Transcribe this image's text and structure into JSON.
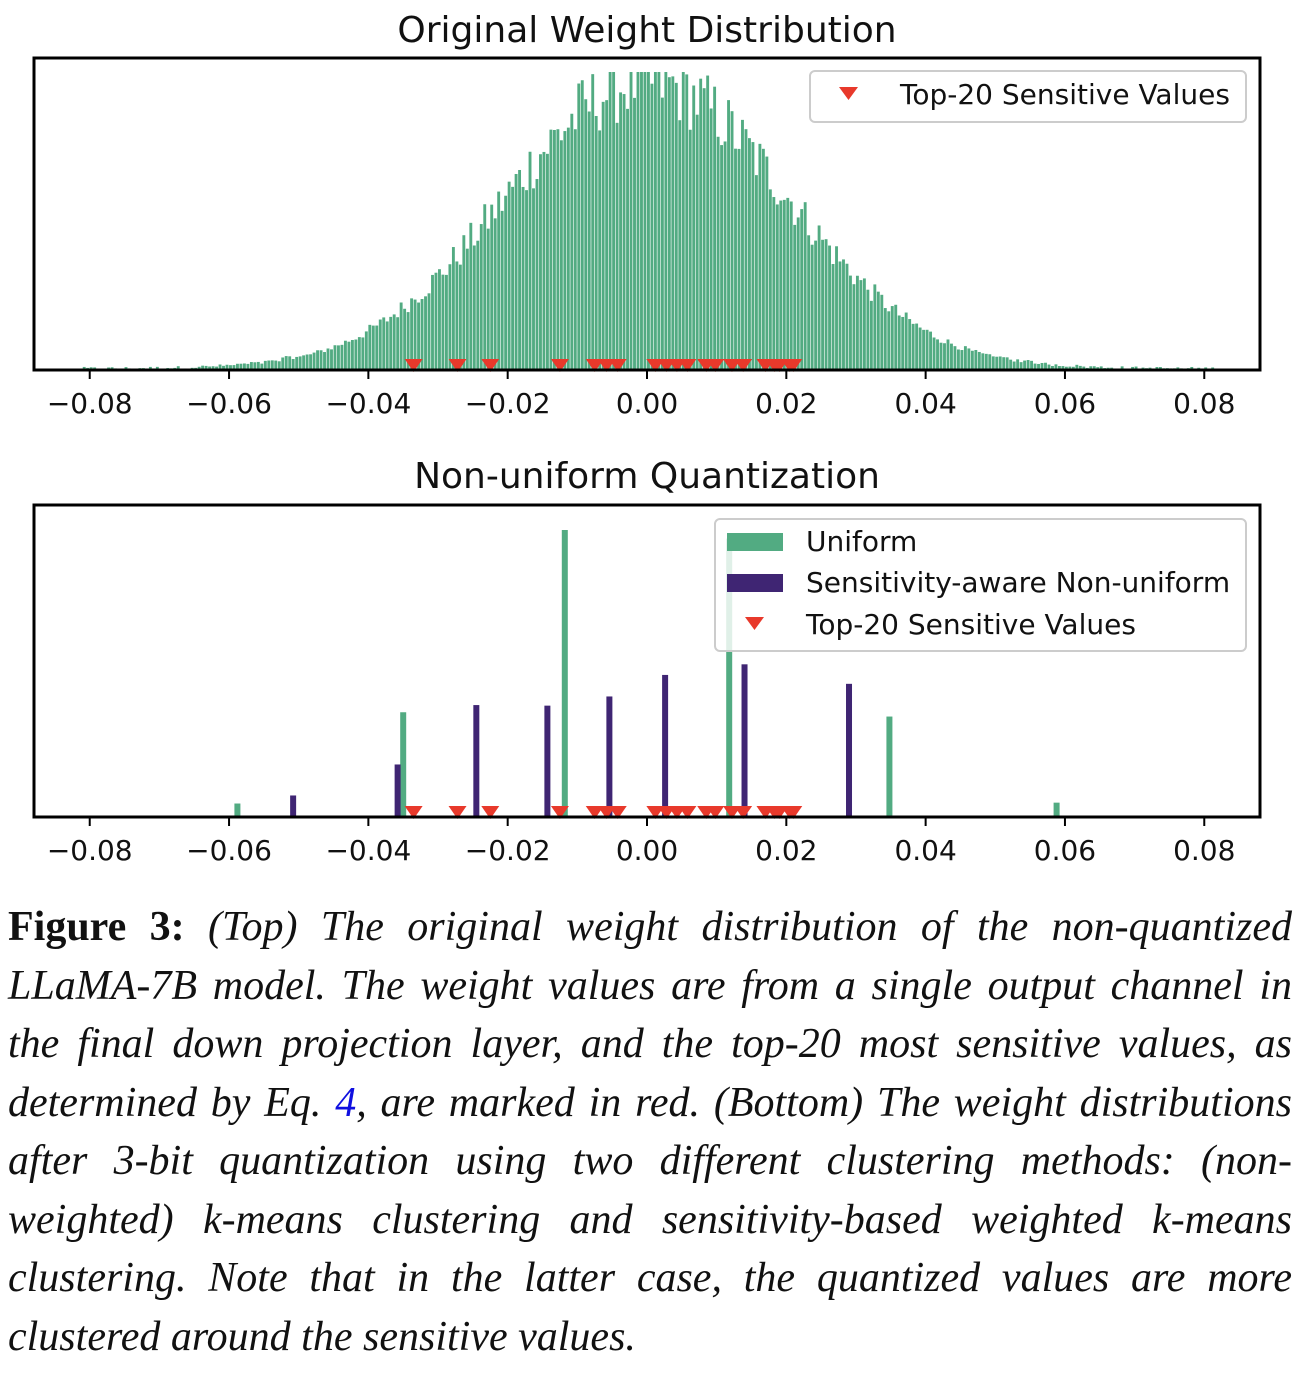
{
  "chart_data": [
    {
      "type": "bar",
      "title": "Original Weight Distribution",
      "xlabel": "",
      "ylabel": "",
      "xlim": [
        -0.088,
        0.088
      ],
      "xticks": [
        "−0.08",
        "−0.06",
        "−0.04",
        "−0.02",
        "0.00",
        "0.02",
        "0.04",
        "0.06",
        "0.08"
      ],
      "xtick_values": [
        -0.08,
        -0.06,
        -0.04,
        -0.02,
        0.0,
        0.02,
        0.04,
        0.06,
        0.08
      ],
      "legend": {
        "placement": "upper right",
        "entries": [
          "Top-20 Sensitive Values"
        ]
      },
      "series": [
        {
          "name": "histogram",
          "color": "#52ab82",
          "distribution": "approximately normal",
          "center": 0.0,
          "std": 0.02
        },
        {
          "name": "Top-20 Sensitive Values",
          "color": "#e8392b",
          "marker": "triangle-down",
          "x": [
            -0.0335,
            -0.0272,
            -0.0225,
            -0.0125,
            -0.0075,
            -0.0058,
            -0.0042,
            0.0012,
            0.0028,
            0.0043,
            0.0058,
            0.0085,
            0.0098,
            0.0122,
            0.0138,
            0.017,
            0.0183,
            0.019,
            0.0205,
            0.021
          ]
        }
      ]
    },
    {
      "type": "bar",
      "title": "Non-uniform Quantization",
      "xlabel": "",
      "ylabel": "",
      "xlim": [
        -0.088,
        0.088
      ],
      "xticks": [
        "−0.08",
        "−0.06",
        "−0.04",
        "−0.02",
        "0.00",
        "0.02",
        "0.04",
        "0.06",
        "0.08"
      ],
      "xtick_values": [
        -0.08,
        -0.06,
        -0.04,
        -0.02,
        0.0,
        0.02,
        0.04,
        0.06,
        0.08
      ],
      "legend": {
        "placement": "upper right",
        "entries": [
          "Uniform",
          "Sensitivity-aware Non-uniform",
          "Top-20 Sensitive Values"
        ]
      },
      "series": [
        {
          "name": "Uniform",
          "color": "#52ab82",
          "x": [
            -0.0588,
            -0.035,
            -0.0118,
            0.0118,
            0.0348,
            0.0588
          ],
          "values": [
            0.047,
            0.365,
            1.0,
            0.97,
            0.35,
            0.05
          ]
        },
        {
          "name": "Sensitivity-aware Non-uniform",
          "color": "#3f2573",
          "x": [
            -0.0508,
            -0.0358,
            -0.0245,
            -0.0143,
            -0.0054,
            0.0026,
            0.014,
            0.029
          ],
          "values": [
            0.075,
            0.183,
            0.39,
            0.388,
            0.42,
            0.495,
            0.532,
            0.464
          ]
        },
        {
          "name": "Top-20 Sensitive Values",
          "color": "#e8392b",
          "marker": "triangle-down",
          "x": [
            -0.0335,
            -0.0272,
            -0.0225,
            -0.0125,
            -0.0075,
            -0.0058,
            -0.0042,
            0.0012,
            0.0028,
            0.0043,
            0.0058,
            0.0085,
            0.0098,
            0.0122,
            0.0138,
            0.017,
            0.0183,
            0.019,
            0.0205,
            0.021
          ]
        }
      ]
    }
  ],
  "caption": {
    "label": "Figure 3:",
    "text_before_ref": " (Top) The original weight distribution of the non-quantized LLaMA-7B model. The weight values are from a single output channel in the final down projection layer, and the top-20 most sensitive values, as determined by Eq. ",
    "ref": "4",
    "text_after_ref": ", are marked in red. (Bottom) The weight distributions after 3-bit quantization using two different clustering methods: (non-weighted) k-means clustering and sensitivity-based weighted k-means clustering. Note that in the latter case, the quantized values are more clustered around the sensitive values."
  }
}
